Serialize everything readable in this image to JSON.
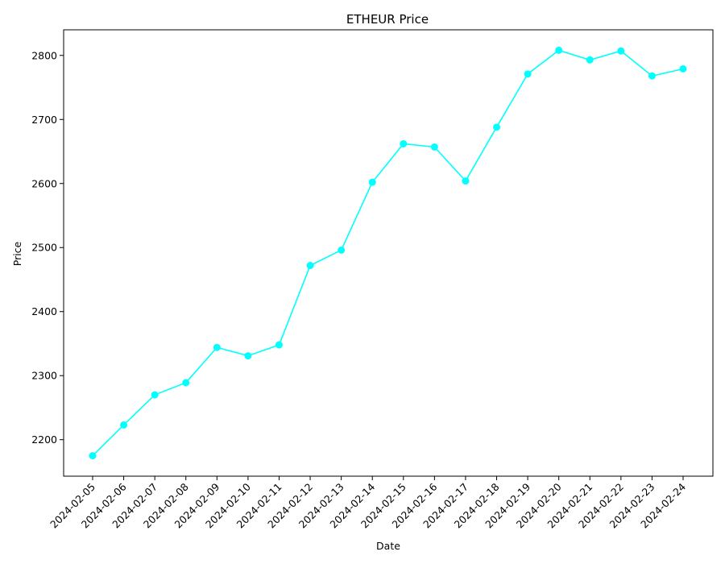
{
  "chart_data": {
    "type": "line",
    "title": "ETHEUR Price",
    "xlabel": "Date",
    "ylabel": "Price",
    "x": [
      "2024-02-05",
      "2024-02-06",
      "2024-02-07",
      "2024-02-08",
      "2024-02-09",
      "2024-02-10",
      "2024-02-11",
      "2024-02-12",
      "2024-02-13",
      "2024-02-14",
      "2024-02-15",
      "2024-02-16",
      "2024-02-17",
      "2024-02-18",
      "2024-02-19",
      "2024-02-20",
      "2024-02-21",
      "2024-02-22",
      "2024-02-23",
      "2024-02-24"
    ],
    "series": [
      {
        "values": [
          2175,
          2223,
          2270,
          2289,
          2344,
          2331,
          2348,
          2472,
          2496,
          2602,
          2662,
          2657,
          2604,
          2688,
          2771,
          2808,
          2793,
          2807,
          2768,
          2779
        ],
        "color": "#00ffff"
      }
    ],
    "ylim": [
      2143,
      2840
    ],
    "yticks": [
      2200,
      2300,
      2400,
      2500,
      2600,
      2700,
      2800
    ],
    "grid": false,
    "legend": "none",
    "marker": "circle"
  }
}
